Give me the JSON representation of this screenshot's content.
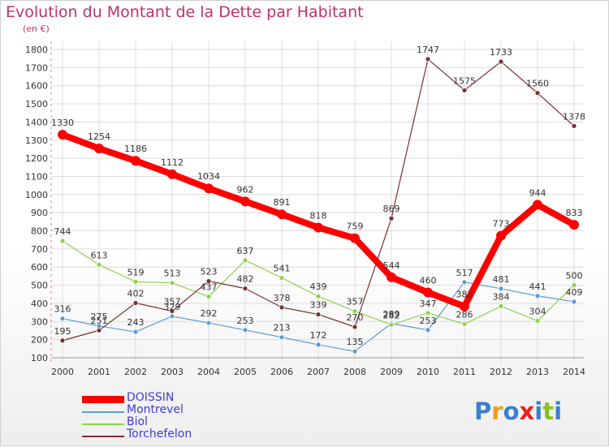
{
  "header": {
    "title": "Evolution du Montant de la Dette par Habitant",
    "unit": "(en €)"
  },
  "colors": {
    "title": "#c0306a",
    "legend_text": "#3c3cdc",
    "grid": "#dcdcdc",
    "axis_text": "#333333"
  },
  "logo": {
    "text": "Proxiti",
    "letter_colors": [
      "#3a7fd0",
      "#e8a020",
      "#3a7fd0",
      "#e82020",
      "#3a7fd0",
      "#88c020",
      "#3a7fd0"
    ]
  },
  "chart_data": {
    "type": "line",
    "title": "Evolution du Montant de la Dette par Habitant",
    "ylabel": "(en €)",
    "xlabel": "",
    "x": [
      "2000",
      "2001",
      "2002",
      "2003",
      "2004",
      "2005",
      "2006",
      "2007",
      "2008",
      "2009",
      "2010",
      "2011",
      "2012",
      "2013",
      "2014"
    ],
    "ylim": [
      100,
      1800
    ],
    "yticks": [
      100,
      200,
      300,
      400,
      500,
      600,
      700,
      800,
      900,
      1000,
      1100,
      1200,
      1300,
      1400,
      1500,
      1600,
      1700,
      1800
    ],
    "grid": true,
    "legend_position": "bottom-left",
    "series": [
      {
        "name": "DOISSIN",
        "color": "#ff0000",
        "emphasis": true,
        "values": [
          1330,
          1254,
          1186,
          1112,
          1034,
          962,
          891,
          818,
          759,
          544,
          460,
          383,
          773,
          944,
          833
        ]
      },
      {
        "name": "Montrevel",
        "color": "#5b9bd5",
        "emphasis": false,
        "values": [
          316,
          275,
          243,
          329,
          292,
          253,
          213,
          172,
          135,
          289,
          253,
          517,
          481,
          441,
          409
        ]
      },
      {
        "name": "Biol",
        "color": "#8ed14e",
        "emphasis": false,
        "values": [
          744,
          613,
          519,
          513,
          437,
          637,
          541,
          439,
          357,
          282,
          347,
          286,
          384,
          304,
          500
        ]
      },
      {
        "name": "Torchefelon",
        "color": "#7a2f2f",
        "emphasis": false,
        "values": [
          195,
          251,
          402,
          357,
          523,
          482,
          378,
          339,
          270,
          869,
          1747,
          1575,
          1733,
          1560,
          1378
        ]
      }
    ]
  }
}
